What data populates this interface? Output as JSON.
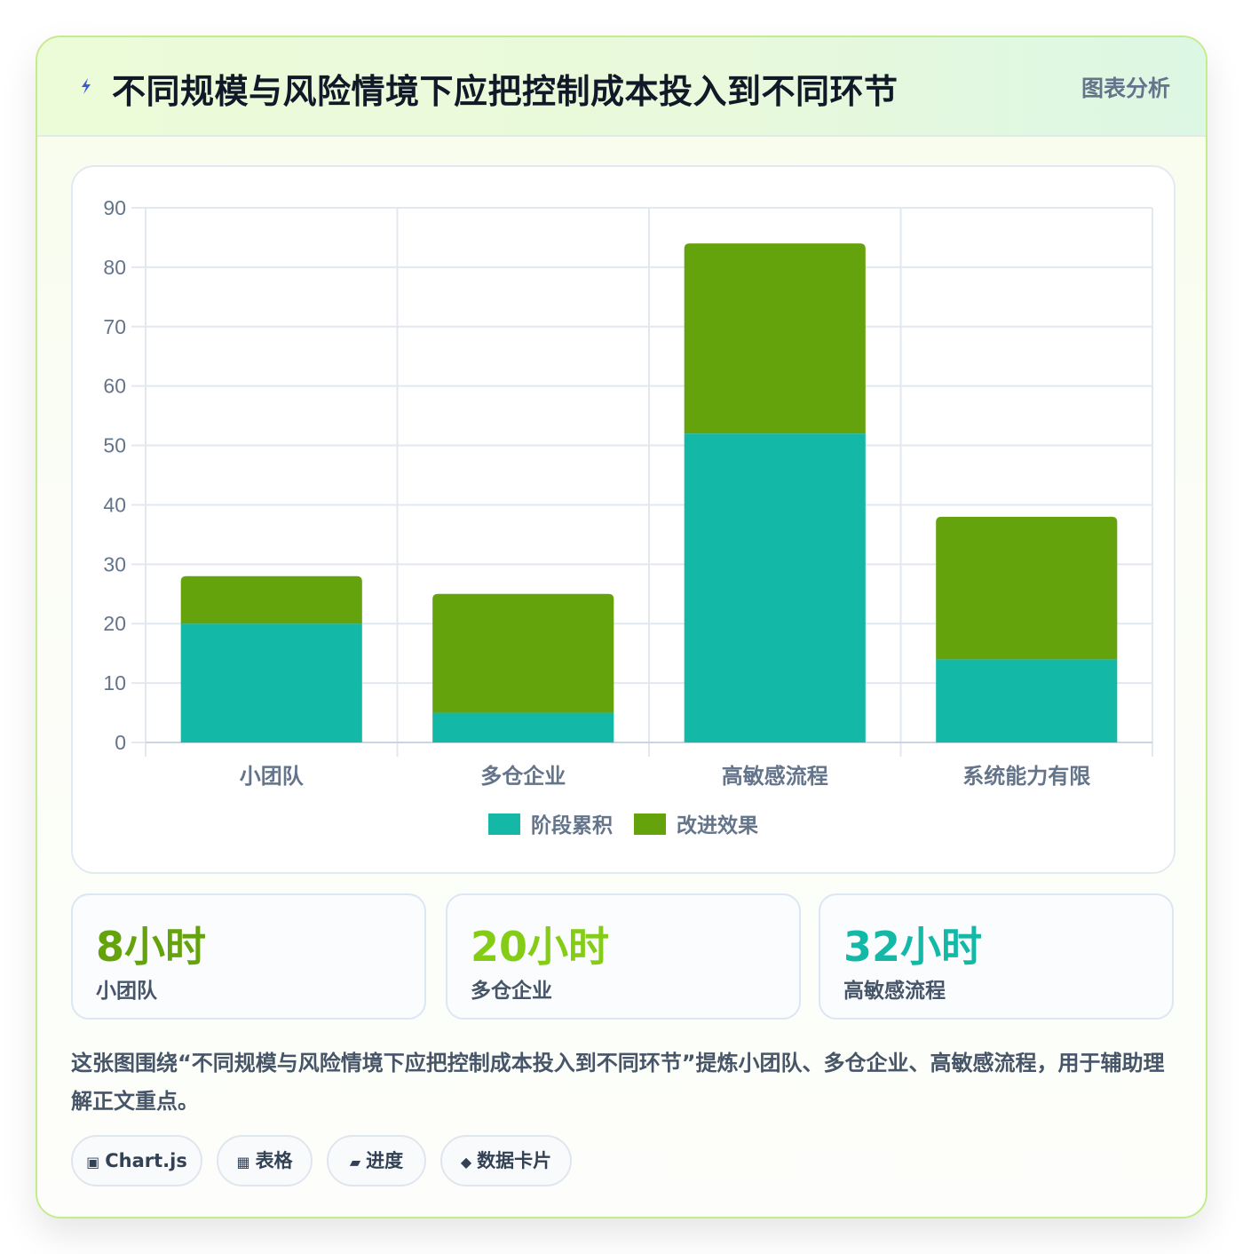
{
  "header": {
    "title": "不同规模与风险情境下应把控制成本投入到不同环节",
    "badge": "图表分析",
    "icon": "lightning-icon"
  },
  "chart_data": {
    "type": "bar",
    "stacked": true,
    "categories": [
      "小团队",
      "多仓企业",
      "高敏感流程",
      "系统能力有限"
    ],
    "series": [
      {
        "name": "阶段累积",
        "color": "#14b8a6",
        "values": [
          20,
          5,
          52,
          14
        ]
      },
      {
        "name": "改进效果",
        "color": "#65a30d",
        "values": [
          8,
          20,
          32,
          24
        ]
      }
    ],
    "ylim": [
      0,
      90
    ],
    "yticks": [
      0,
      10,
      20,
      30,
      40,
      50,
      60,
      70,
      80,
      90
    ],
    "grid": true,
    "legend_position": "bottom"
  },
  "stats": [
    {
      "value": "8小时",
      "label": "小团队",
      "color": "#65a30d"
    },
    {
      "value": "20小时",
      "label": "多仓企业",
      "color": "#84cc16"
    },
    {
      "value": "32小时",
      "label": "高敏感流程",
      "color": "#14b8a6"
    }
  ],
  "description": "这张图围绕“不同规模与风险情境下应把控制成本投入到不同环节”提炼小团队、多仓企业、高敏感流程，用于辅助理解正文重点。",
  "chips": [
    {
      "icon": "▣",
      "icon_name": "chart-icon",
      "label": "Chart.js"
    },
    {
      "icon": "▦",
      "icon_name": "table-icon",
      "label": "表格"
    },
    {
      "icon": "▰",
      "icon_name": "progress-icon",
      "label": "进度"
    },
    {
      "icon": "◆",
      "icon_name": "card-icon",
      "label": "数据卡片"
    }
  ]
}
